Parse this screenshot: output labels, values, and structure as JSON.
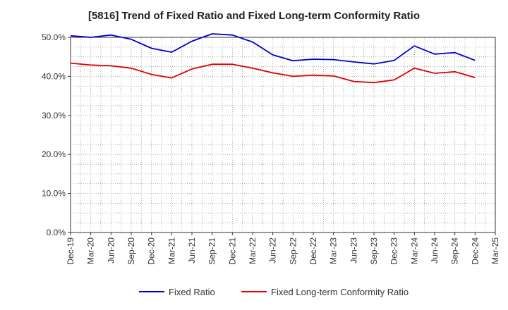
{
  "chart_data": {
    "type": "line",
    "title": "[5816]  Trend of Fixed Ratio and Fixed Long-term Conformity Ratio",
    "xlabel": "",
    "ylabel": "",
    "ylim": [
      0,
      50
    ],
    "yticks": [
      "0.0%",
      "10.0%",
      "20.0%",
      "30.0%",
      "40.0%",
      "50.0%"
    ],
    "x_tick_labels": [
      "Dec-19",
      "Mar-20",
      "Jun-20",
      "Sep-20",
      "Dec-20",
      "Mar-21",
      "Jun-21",
      "Sep-21",
      "Dec-21",
      "Mar-22",
      "Jun-22",
      "Sep-22",
      "Dec-22",
      "Mar-23",
      "Jun-23",
      "Sep-23",
      "Dec-23",
      "Mar-24",
      "Jun-24",
      "Sep-24",
      "Dec-24",
      "Mar-25"
    ],
    "x": [
      "Dec-19",
      "Mar-20",
      "Jun-20",
      "Sep-20",
      "Dec-20",
      "Mar-21",
      "Jun-21",
      "Sep-21",
      "Dec-21",
      "Mar-22",
      "Jun-22",
      "Sep-22",
      "Dec-22",
      "Mar-23",
      "Jun-23",
      "Sep-23",
      "Dec-23",
      "Mar-24",
      "Jun-24",
      "Sep-24",
      "Dec-24"
    ],
    "grid": true,
    "legend_position": "bottom",
    "series": [
      {
        "name": "Fixed Ratio",
        "color": "#0000cc",
        "values": [
          50.4,
          50.0,
          50.6,
          49.5,
          47.2,
          46.2,
          49.0,
          50.9,
          50.6,
          48.8,
          45.5,
          44.0,
          44.4,
          44.3,
          43.7,
          43.2,
          44.1,
          47.8,
          45.7,
          46.1,
          44.1
        ]
      },
      {
        "name": "Fixed Long-term Conformity Ratio",
        "color": "#dd0000",
        "values": [
          43.4,
          42.9,
          42.7,
          42.1,
          40.5,
          39.6,
          41.9,
          43.1,
          43.1,
          42.1,
          40.9,
          40.0,
          40.3,
          40.1,
          38.7,
          38.4,
          39.1,
          42.1,
          40.8,
          41.2,
          39.7
        ]
      }
    ]
  }
}
